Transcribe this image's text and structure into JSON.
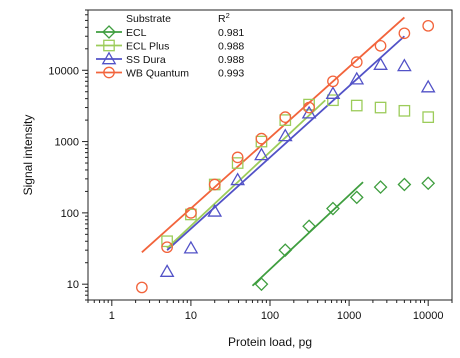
{
  "chart_data": {
    "type": "scatter",
    "xlabel": "Protein load, pg",
    "ylabel": "Signal intensity",
    "x_scale": "log",
    "y_scale": "log",
    "xlim": [
      0.5,
      20000
    ],
    "ylim": [
      6,
      70000
    ],
    "x_ticks": [
      {
        "value": 1,
        "label": "1"
      },
      {
        "value": 10,
        "label": "10"
      },
      {
        "value": 100,
        "label": "100"
      },
      {
        "value": 1000,
        "label": "1000"
      },
      {
        "value": 10000,
        "label": "10000"
      }
    ],
    "y_ticks": [
      {
        "value": 10,
        "label": "10"
      },
      {
        "value": 100,
        "label": "100"
      },
      {
        "value": 1000,
        "label": "1000"
      },
      {
        "value": 10000,
        "label": "10000"
      }
    ],
    "legend": {
      "position": "top-left",
      "header_substrate": "Substrate",
      "header_r2": "R",
      "header_r2_sup": "2"
    },
    "series": [
      {
        "name": "ECL",
        "r2": "0.981",
        "color": "#3f9e3f",
        "marker": "diamond",
        "points": [
          [
            78,
            10
          ],
          [
            156,
            30
          ],
          [
            312,
            65
          ],
          [
            625,
            115
          ],
          [
            1250,
            165
          ],
          [
            2500,
            230
          ],
          [
            5000,
            250
          ],
          [
            10000,
            260
          ]
        ],
        "fit": [
          [
            60,
            9.5
          ],
          [
            1500,
            270
          ]
        ]
      },
      {
        "name": "ECL Plus",
        "r2": "0.988",
        "color": "#9ccc5a",
        "marker": "square",
        "points": [
          [
            5,
            40
          ],
          [
            10,
            95
          ],
          [
            20,
            250
          ],
          [
            39,
            500
          ],
          [
            78,
            1000
          ],
          [
            156,
            2000
          ],
          [
            312,
            3300
          ],
          [
            625,
            3800
          ],
          [
            1250,
            3200
          ],
          [
            2500,
            3000
          ],
          [
            5000,
            2700
          ],
          [
            10000,
            2200
          ]
        ],
        "fit": [
          [
            5,
            32
          ],
          [
            500,
            3800
          ]
        ]
      },
      {
        "name": "SS Dura",
        "r2": "0.988",
        "color": "#5252c7",
        "marker": "triangle",
        "points": [
          [
            5,
            15
          ],
          [
            10,
            32
          ],
          [
            20,
            105
          ],
          [
            39,
            290
          ],
          [
            78,
            650
          ],
          [
            156,
            1200
          ],
          [
            312,
            2500
          ],
          [
            625,
            4700
          ],
          [
            1250,
            7500
          ],
          [
            2500,
            12000
          ],
          [
            5000,
            11500
          ],
          [
            10000,
            5800
          ]
        ],
        "fit": [
          [
            5,
            30
          ],
          [
            5000,
            30000
          ]
        ]
      },
      {
        "name": "WB Quantum",
        "r2": "0.993",
        "color": "#f2643c",
        "marker": "circle",
        "points": [
          [
            2.4,
            9
          ],
          [
            5,
            33
          ],
          [
            10,
            100
          ],
          [
            20,
            250
          ],
          [
            39,
            600
          ],
          [
            78,
            1100
          ],
          [
            156,
            2200
          ],
          [
            312,
            3000
          ],
          [
            625,
            7000
          ],
          [
            1250,
            13000
          ],
          [
            2500,
            22000
          ],
          [
            5000,
            33000
          ],
          [
            10000,
            42000
          ]
        ],
        "fit": [
          [
            2.4,
            28
          ],
          [
            5000,
            55000
          ]
        ]
      }
    ]
  }
}
